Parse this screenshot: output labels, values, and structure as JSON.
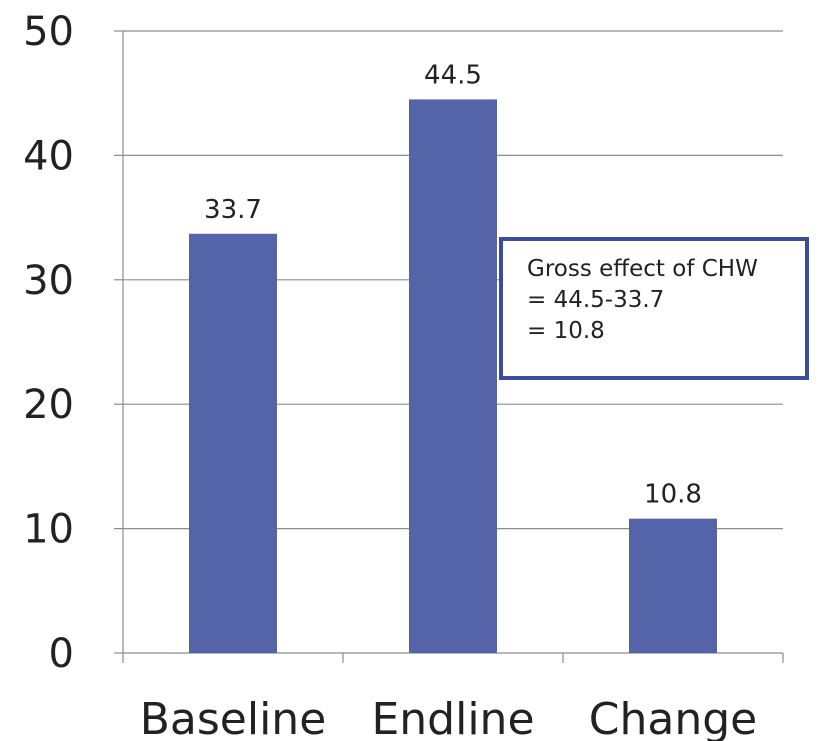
{
  "chart_data": {
    "type": "bar",
    "title": "",
    "xlabel": "",
    "ylabel": "",
    "categories": [
      "Baseline",
      "Endline",
      "Change"
    ],
    "values": [
      33.7,
      44.5,
      10.8
    ],
    "data_labels": [
      "33.7",
      "44.5",
      "10.8"
    ],
    "ylim": [
      0,
      50
    ],
    "yticks": [
      "0",
      "10",
      "20",
      "30",
      "40",
      "50"
    ],
    "grid": true,
    "bar_color": "#5563a8",
    "annotation": {
      "lines": [
        "Gross effect of CHW",
        "= 44.5-33.7",
        "= 10.8"
      ],
      "border_color": "#3a4d9e"
    }
  }
}
